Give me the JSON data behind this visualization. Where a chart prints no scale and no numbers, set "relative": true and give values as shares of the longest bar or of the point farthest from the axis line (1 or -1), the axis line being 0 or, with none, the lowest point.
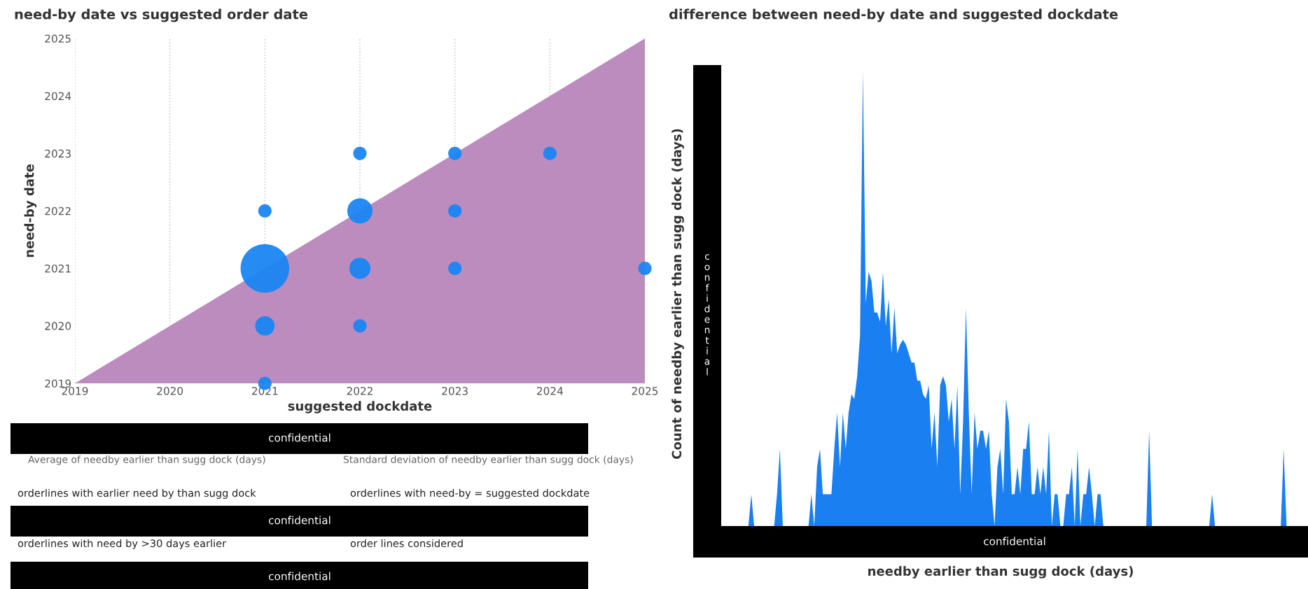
{
  "chart_data": [
    {
      "type": "bubble",
      "title": "need-by date vs suggested order date",
      "xlabel": "suggested dockdate",
      "ylabel": "need-by date",
      "xlim": [
        2019,
        2025
      ],
      "xticks": [
        2019,
        2020,
        2021,
        2022,
        2023,
        2024,
        2025
      ],
      "ylim": [
        2019,
        2025
      ],
      "yticks": [
        2019,
        2020,
        2021,
        2022,
        2023,
        2024,
        2025
      ],
      "grid": "x",
      "series": [
        {
          "type": "area",
          "color": "#bc8cbf",
          "x": [
            2019,
            2025
          ],
          "values": [
            2019,
            2025
          ]
        },
        {
          "type": "bubble",
          "color": "#1a86f2",
          "x": [
            2021,
            2021,
            2021,
            2021,
            2022,
            2022,
            2022,
            2022,
            2023,
            2023,
            2023,
            2024,
            2025
          ],
          "values": [
            2022,
            2021,
            2020,
            2019,
            2023,
            2022,
            2021,
            2020,
            2023,
            2022,
            2021,
            2023,
            2021
          ],
          "sizes": [
            0.076,
            1,
            0.16,
            0.076,
            0.076,
            0.27,
            0.19,
            0.076,
            0.076,
            0.076,
            0.076,
            0.076,
            0.076
          ]
        }
      ]
    },
    {
      "type": "other",
      "annotations": [
        "confidential",
        "Average of needby earlier than sugg dock (days)",
        "Standard deviation of needby earlier than sugg dock (days)",
        "orderlines with earlier need by than sugg dock",
        "orderlines with need-by = suggested dockdate",
        "confidential",
        "orderlines with need by >30 days earlier",
        "order lines considered",
        "confidential"
      ]
    },
    {
      "type": "area",
      "title": "difference between need-by date and suggested dockdate",
      "xlabel": "needby earlier than sugg dock (days)",
      "ylabel": "Count of needby earlier than sugg dock (days)",
      "relative": true,
      "color": "#1a7ff0",
      "annotations": [
        "confidential",
        "confidential"
      ],
      "categories": [
        null,
        null,
        null,
        null,
        null,
        null,
        null,
        null,
        null,
        null,
        null,
        null,
        null,
        null,
        null,
        null,
        null,
        null,
        null,
        null,
        null,
        null,
        null,
        null,
        null,
        null,
        null,
        null,
        null,
        null,
        null,
        null,
        null,
        null,
        null,
        null,
        null,
        null,
        null,
        null,
        null,
        null,
        null,
        null,
        null,
        null,
        null,
        null,
        null,
        null,
        null,
        null,
        null,
        null,
        null,
        null,
        null,
        null,
        null,
        null,
        null,
        null,
        null,
        null,
        null,
        null,
        null,
        null,
        null,
        null,
        null,
        null,
        null,
        null,
        null,
        null,
        null,
        null,
        null,
        null,
        null,
        null,
        null,
        null,
        null,
        null,
        null,
        null,
        null,
        null,
        null,
        null,
        null,
        null,
        null,
        null,
        null,
        null,
        null,
        null,
        null,
        null,
        null,
        null,
        null,
        null,
        null,
        null,
        null,
        null,
        null,
        null,
        null,
        null,
        null,
        null,
        null,
        null,
        null,
        null,
        null,
        null,
        null,
        null,
        null,
        null,
        null,
        null,
        null,
        null,
        null,
        null,
        null,
        null,
        null,
        null,
        null,
        null,
        null,
        null,
        null,
        null,
        null,
        null,
        null,
        null,
        null,
        null,
        null,
        null,
        null,
        null,
        null,
        null,
        null,
        null,
        null,
        null,
        null,
        null,
        null,
        null,
        null,
        null,
        null,
        null,
        null,
        null,
        null,
        null,
        null,
        null,
        null,
        null,
        null,
        null,
        null,
        null,
        null,
        null,
        null,
        null,
        null,
        null,
        null,
        null,
        null,
        null,
        null,
        null,
        null,
        null,
        null,
        null,
        null,
        null,
        null,
        null,
        null,
        null
      ],
      "values": [
        0,
        0,
        0,
        0,
        0,
        0,
        0,
        0,
        0,
        0.07,
        0,
        0,
        0,
        0,
        0,
        0,
        0,
        0,
        0.07,
        0.17,
        0,
        0,
        0,
        0,
        0,
        0,
        0,
        0,
        0,
        0,
        0.07,
        0,
        0.13,
        0.17,
        0.07,
        0.07,
        0.07,
        0.07,
        0.17,
        0.25,
        0.13,
        0.25,
        0.17,
        0.25,
        0.29,
        0.28,
        0.33,
        0.42,
        1,
        0.49,
        0.56,
        0.54,
        0.47,
        0.47,
        0.45,
        0.56,
        0.44,
        0.5,
        0.38,
        0.48,
        0.38,
        0.4,
        0.41,
        0.4,
        0.38,
        0.36,
        0.36,
        0.32,
        0.32,
        0.29,
        0.28,
        0.31,
        0.17,
        0.25,
        0.13,
        0.31,
        0.33,
        0.31,
        0.23,
        0.28,
        0.17,
        0.31,
        0.07,
        0.23,
        0.48,
        0.25,
        0.07,
        0.25,
        0.17,
        0.21,
        0.21,
        0.17,
        0.21,
        0.07,
        0,
        0.13,
        0.17,
        0.07,
        0.28,
        0.23,
        0.07,
        0.07,
        0.13,
        0.07,
        0.17,
        0.17,
        0.23,
        0.07,
        0.07,
        0.13,
        0.07,
        0.13,
        0.07,
        0.21,
        0,
        0.07,
        0.07,
        0,
        0,
        0.07,
        0.07,
        0.13,
        0,
        0.17,
        0,
        0.07,
        0.07,
        0.13,
        0.07,
        0,
        0.07,
        0.07,
        0,
        0,
        0,
        0,
        0,
        0,
        0,
        0,
        0,
        0,
        0,
        0,
        0,
        0,
        0,
        0,
        0.21,
        0,
        0,
        0,
        0,
        0,
        0,
        0,
        0,
        0,
        0,
        0,
        0,
        0,
        0,
        0,
        0,
        0,
        0,
        0,
        0,
        0,
        0.07,
        0,
        0,
        0,
        0,
        0,
        0,
        0,
        0,
        0,
        0,
        0,
        0,
        0,
        0,
        0,
        0,
        0,
        0,
        0,
        0,
        0,
        0,
        0,
        0,
        0.17,
        0,
        0,
        0,
        0
      ]
    }
  ]
}
